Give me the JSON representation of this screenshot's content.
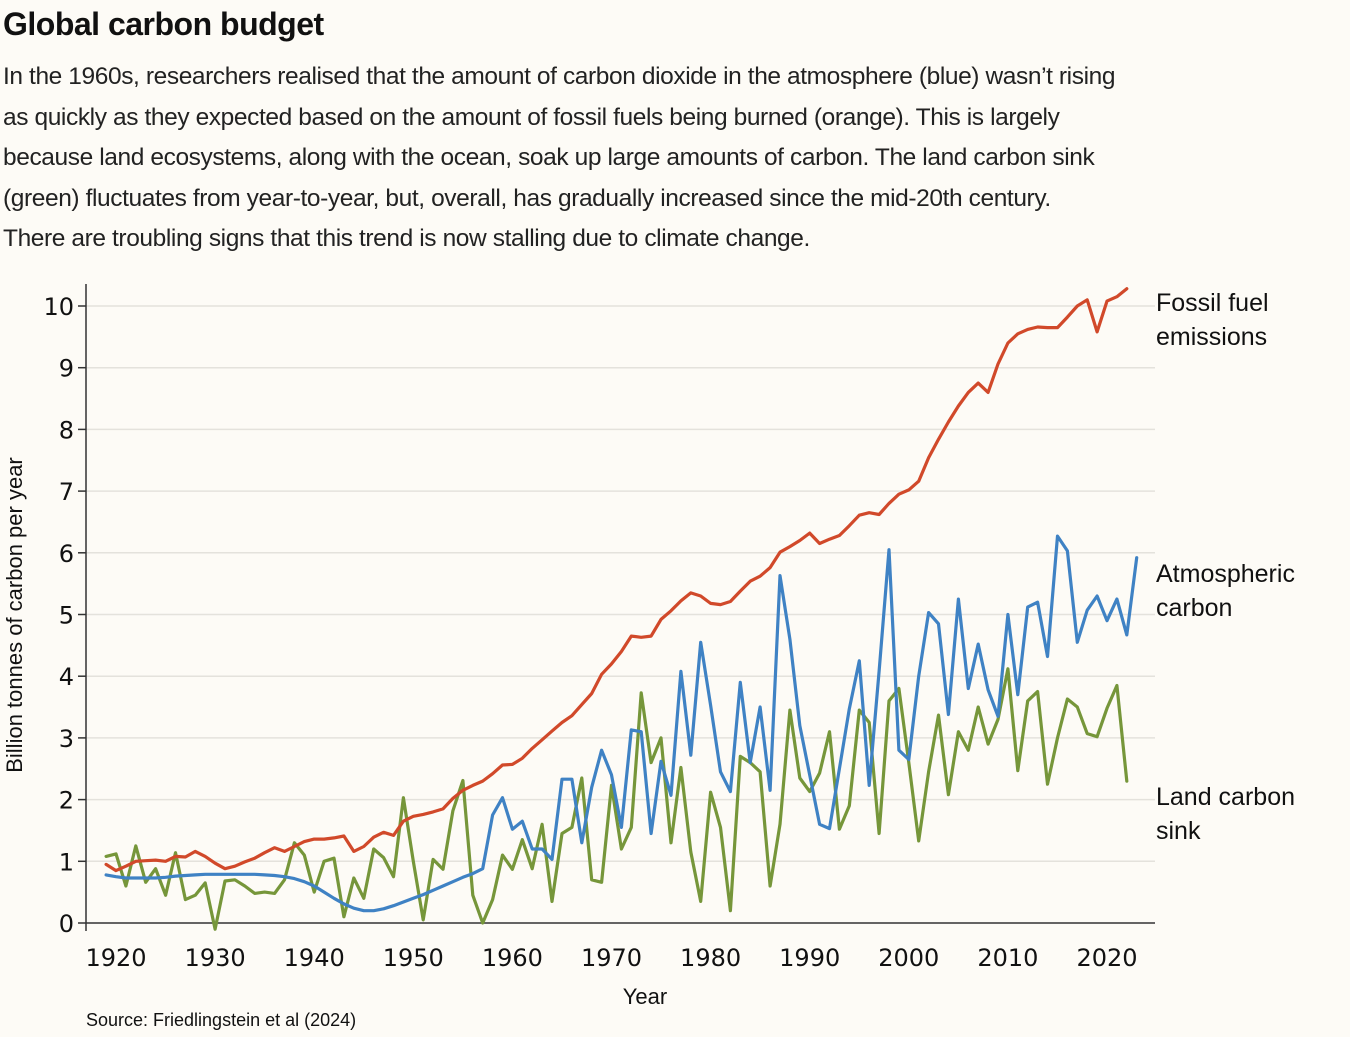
{
  "header": {
    "title": "Global carbon budget",
    "description_lines": [
      "In the 1960s, researchers realised that the amount of carbon dioxide in the atmosphere (blue) wasn’t rising",
      "as quickly as they expected based on the amount of fossil fuels being burned (orange). This is largely",
      "because land ecosystems, along with the ocean, soak up large amounts of carbon. The land carbon sink",
      "(green) fluctuates from year-to-year, but, overall, has gradually increased since the mid-20th century.",
      "There are troubling  signs that this trend is now stalling due to climate change."
    ]
  },
  "source": "Source: Friedlingstein et al (2024)",
  "chart_data": {
    "type": "line",
    "title": "Global carbon budget",
    "xlabel": "Year",
    "ylabel": "Billion tonnes of carbon per year",
    "xlim": [
      1919,
      2023
    ],
    "ylim": [
      0,
      10
    ],
    "x_ticks": [
      "1920",
      "1930",
      "1940",
      "1950",
      "1960",
      "1970",
      "1980",
      "1990",
      "2000",
      "2010",
      "2020"
    ],
    "y_ticks": [
      "0",
      "1",
      "2",
      "3",
      "4",
      "5",
      "6",
      "7",
      "8",
      "9",
      "10"
    ],
    "grid": true,
    "legend": "direct-labels-right",
    "x_start": 1919,
    "series": [
      {
        "name": "Fossil fuel emissions",
        "label_lines": [
          "Fossil fuel",
          "emissions"
        ],
        "color": "#d1492a",
        "values": [
          0.95,
          0.85,
          0.92,
          1.0,
          1.01,
          1.02,
          1.0,
          1.08,
          1.07,
          1.16,
          1.08,
          0.97,
          0.88,
          0.92,
          0.99,
          1.05,
          1.14,
          1.22,
          1.16,
          1.24,
          1.32,
          1.36,
          1.36,
          1.38,
          1.41,
          1.16,
          1.24,
          1.39,
          1.47,
          1.42,
          1.65,
          1.73,
          1.76,
          1.8,
          1.85,
          2.02,
          2.15,
          2.23,
          2.3,
          2.42,
          2.56,
          2.57,
          2.67,
          2.83,
          2.97,
          3.11,
          3.25,
          3.36,
          3.54,
          3.72,
          4.03,
          4.2,
          4.4,
          4.65,
          4.63,
          4.65,
          4.92,
          5.06,
          5.22,
          5.35,
          5.3,
          5.18,
          5.16,
          5.21,
          5.38,
          5.54,
          5.62,
          5.76,
          6.01,
          6.1,
          6.2,
          6.32,
          6.15,
          6.22,
          6.28,
          6.44,
          6.61,
          6.65,
          6.62,
          6.8,
          6.95,
          7.02,
          7.16,
          7.54,
          7.84,
          8.12,
          8.38,
          8.6,
          8.75,
          8.6,
          9.06,
          9.4,
          9.55,
          9.62,
          9.66,
          9.65,
          9.65,
          9.82,
          10.0,
          10.1,
          9.58,
          10.08,
          10.15,
          10.28
        ]
      },
      {
        "name": "Atmospheric carbon",
        "label_lines": [
          "Atmospheric",
          "carbon"
        ],
        "color": "#3f82c4",
        "values": [
          0.78,
          0.75,
          0.73,
          0.73,
          0.73,
          0.73,
          0.74,
          0.76,
          0.77,
          0.78,
          0.79,
          0.79,
          0.79,
          0.79,
          0.79,
          0.79,
          0.78,
          0.77,
          0.75,
          0.72,
          0.67,
          0.6,
          0.5,
          0.4,
          0.31,
          0.24,
          0.2,
          0.2,
          0.23,
          0.28,
          0.34,
          0.4,
          0.46,
          0.53,
          0.6,
          0.67,
          0.74,
          0.8,
          0.88,
          1.75,
          2.03,
          1.52,
          1.65,
          1.2,
          1.2,
          1.03,
          2.33,
          2.33,
          1.3,
          2.2,
          2.8,
          2.4,
          1.55,
          3.13,
          3.1,
          1.45,
          2.62,
          2.07,
          4.08,
          2.72,
          4.55,
          3.53,
          2.45,
          2.13,
          3.9,
          2.6,
          3.5,
          2.15,
          5.63,
          4.6,
          3.2,
          2.4,
          1.6,
          1.53,
          2.5,
          3.47,
          4.25,
          2.23,
          4.08,
          6.05,
          2.8,
          2.65,
          4.0,
          5.03,
          4.85,
          3.38,
          5.25,
          3.8,
          4.52,
          3.78,
          3.35,
          5.0,
          3.7,
          5.12,
          5.2,
          4.32,
          6.27,
          6.03,
          4.55,
          5.07,
          5.3,
          4.9,
          5.25,
          4.67,
          5.92
        ]
      },
      {
        "name": "Land carbon sink",
        "label_lines": [
          "Land carbon",
          "sink"
        ],
        "color": "#76963a",
        "values": [
          1.08,
          1.12,
          0.6,
          1.25,
          0.66,
          0.88,
          0.45,
          1.14,
          0.38,
          0.45,
          0.65,
          -0.1,
          0.68,
          0.7,
          0.6,
          0.48,
          0.5,
          0.48,
          0.7,
          1.3,
          1.1,
          0.5,
          1.0,
          1.05,
          0.1,
          0.73,
          0.4,
          1.2,
          1.06,
          0.75,
          2.03,
          1.0,
          0.05,
          1.03,
          0.87,
          1.82,
          2.31,
          0.45,
          0.0,
          0.38,
          1.1,
          0.87,
          1.35,
          0.88,
          1.6,
          0.35,
          1.45,
          1.55,
          2.35,
          0.7,
          0.66,
          2.23,
          1.2,
          1.55,
          3.73,
          2.6,
          3.0,
          1.3,
          2.52,
          1.15,
          0.35,
          2.12,
          1.55,
          0.2,
          2.7,
          2.6,
          2.45,
          0.6,
          1.6,
          3.45,
          2.35,
          2.13,
          2.43,
          3.1,
          1.52,
          1.9,
          3.45,
          3.25,
          1.45,
          3.6,
          3.8,
          2.6,
          1.33,
          2.45,
          3.37,
          2.08,
          3.1,
          2.8,
          3.5,
          2.9,
          3.3,
          4.12,
          2.47,
          3.6,
          3.75,
          2.25,
          3.0,
          3.63,
          3.5,
          3.07,
          3.02,
          3.48,
          3.85,
          2.3
        ]
      }
    ]
  }
}
